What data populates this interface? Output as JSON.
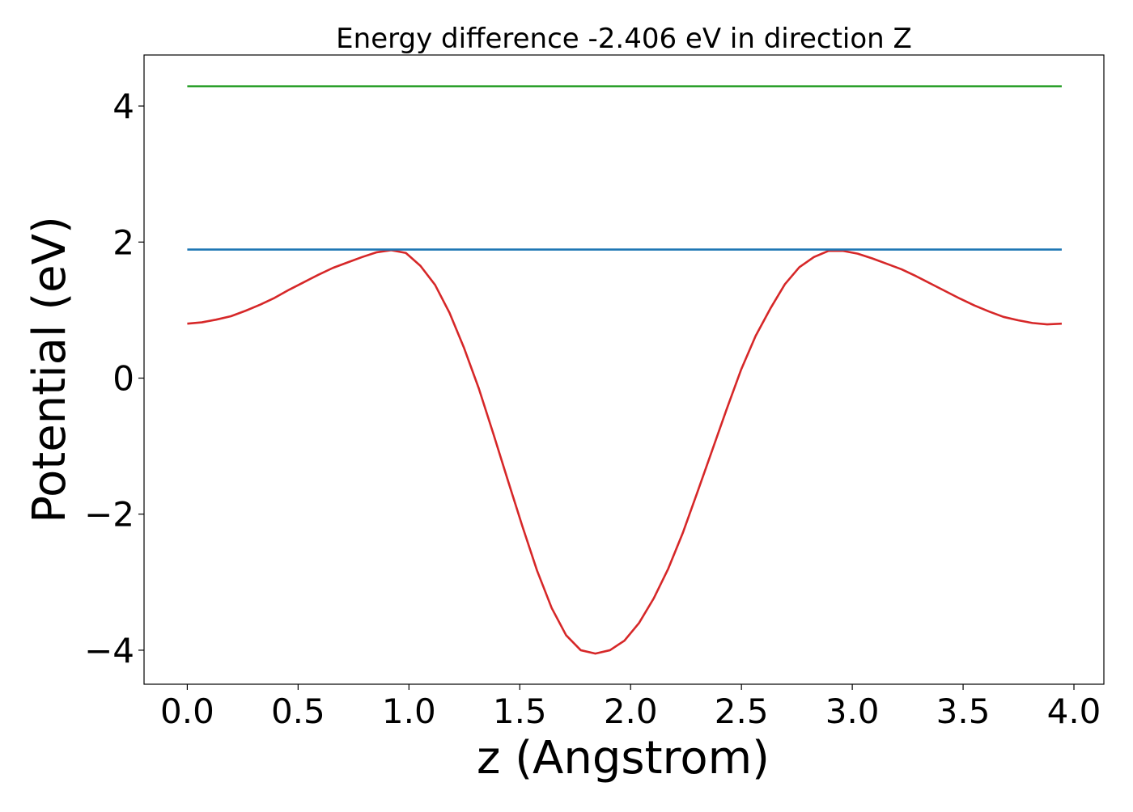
{
  "chart_data": {
    "type": "line",
    "title": "Energy difference -2.406 eV in direction Z",
    "xlabel": "z (Angstrom)",
    "ylabel": "Potential (eV)",
    "xlim": [
      -0.195,
      4.135
    ],
    "ylim": [
      -4.5,
      4.75
    ],
    "xticks": [
      0.0,
      0.5,
      1.0,
      1.5,
      2.0,
      2.5,
      3.0,
      3.5,
      4.0
    ],
    "xtick_labels": [
      "0.0",
      "0.5",
      "1.0",
      "1.5",
      "2.0",
      "2.5",
      "3.0",
      "3.5",
      "4.0"
    ],
    "yticks": [
      -4,
      -2,
      0,
      2,
      4
    ],
    "ytick_labels": [
      "−4",
      "−2",
      "0",
      "2",
      "4"
    ],
    "grid": false,
    "series": [
      {
        "color": "#d62728",
        "x": [
          0.0,
          0.066,
          0.131,
          0.197,
          0.263,
          0.329,
          0.394,
          0.46,
          0.526,
          0.592,
          0.657,
          0.723,
          0.789,
          0.855,
          0.92,
          0.986,
          1.052,
          1.118,
          1.183,
          1.249,
          1.315,
          1.381,
          1.446,
          1.512,
          1.578,
          1.644,
          1.709,
          1.775,
          1.841,
          1.907,
          1.972,
          2.038,
          2.104,
          2.17,
          2.235,
          2.301,
          2.367,
          2.433,
          2.498,
          2.564,
          2.63,
          2.696,
          2.761,
          2.827,
          2.893,
          2.959,
          3.024,
          3.09,
          3.156,
          3.222,
          3.287,
          3.353,
          3.419,
          3.485,
          3.55,
          3.616,
          3.682,
          3.748,
          3.813,
          3.879,
          3.945
        ],
        "values": [
          0.8,
          0.82,
          0.86,
          0.91,
          0.99,
          1.08,
          1.18,
          1.3,
          1.41,
          1.52,
          1.62,
          1.7,
          1.78,
          1.85,
          1.88,
          1.84,
          1.65,
          1.37,
          0.96,
          0.44,
          -0.15,
          -0.82,
          -1.5,
          -2.18,
          -2.83,
          -3.38,
          -3.78,
          -4.0,
          -4.05,
          -4.0,
          -3.86,
          -3.6,
          -3.24,
          -2.8,
          -2.28,
          -1.68,
          -1.07,
          -0.46,
          0.12,
          0.62,
          1.02,
          1.38,
          1.63,
          1.78,
          1.87,
          1.87,
          1.83,
          1.76,
          1.68,
          1.6,
          1.5,
          1.39,
          1.28,
          1.17,
          1.07,
          0.98,
          0.9,
          0.85,
          0.81,
          0.79,
          0.8
        ]
      },
      {
        "color": "#1f77b4",
        "x": [
          0.0,
          3.945
        ],
        "values": [
          1.89,
          1.89
        ]
      },
      {
        "color": "#2ca02c",
        "x": [
          0.0,
          3.945
        ],
        "values": [
          4.29,
          4.29
        ]
      }
    ]
  }
}
